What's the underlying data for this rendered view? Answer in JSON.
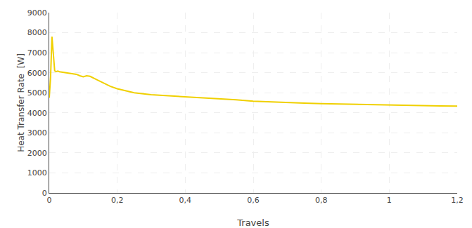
{
  "chart_data": {
    "type": "line",
    "xlabel": "Travels",
    "ylabel": "Heat Transfer Rate  [W]",
    "x": [
      0.0,
      0.004,
      0.008,
      0.012,
      0.016,
      0.02,
      0.025,
      0.03,
      0.04,
      0.05,
      0.06,
      0.07,
      0.08,
      0.09,
      0.1,
      0.11,
      0.12,
      0.14,
      0.16,
      0.18,
      0.2,
      0.25,
      0.3,
      0.35,
      0.4,
      0.45,
      0.5,
      0.55,
      0.6,
      0.65,
      0.7,
      0.75,
      0.8,
      0.85,
      0.9,
      0.95,
      1.0,
      1.05,
      1.1,
      1.15,
      1.2
    ],
    "values": [
      4750,
      5800,
      7800,
      6800,
      6100,
      6050,
      6080,
      6050,
      6020,
      6000,
      5980,
      5950,
      5920,
      5850,
      5800,
      5850,
      5820,
      5650,
      5480,
      5320,
      5200,
      5000,
      4900,
      4850,
      4820,
      4760,
      4700,
      4650,
      4580,
      4540,
      4510,
      4480,
      4460,
      4440,
      4420,
      4400,
      4380,
      4360,
      4350,
      4340,
      4330
    ],
    "color": "#f0d000",
    "xlim": [
      0,
      1.2
    ],
    "ylim": [
      0,
      9000
    ],
    "xticks": [
      0,
      {
        "value": 0.2,
        "label": "0,2"
      },
      {
        "value": 0.4,
        "label": "0,4"
      },
      {
        "value": 0.6,
        "label": "0,6"
      },
      {
        "value": 0.8,
        "label": "0,8"
      },
      1,
      {
        "value": 1.2,
        "label": "1,2"
      }
    ],
    "yticks": [
      0,
      1000,
      2000,
      3000,
      4000,
      5000,
      6000,
      7000,
      8000,
      9000
    ],
    "grid": true
  }
}
